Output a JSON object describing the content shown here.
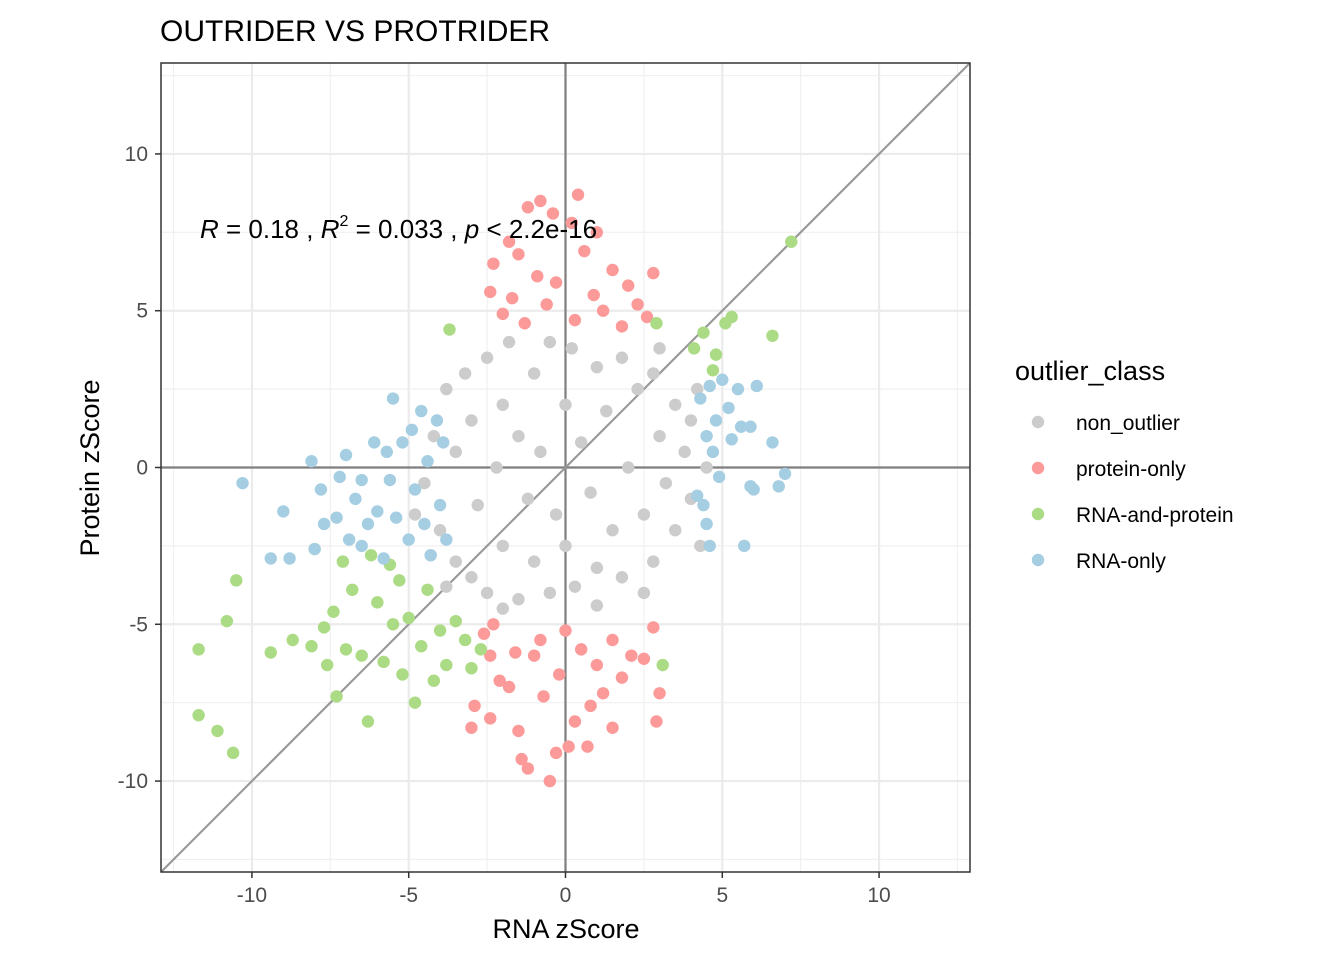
{
  "chart_data": {
    "type": "scatter",
    "title": "OUTRIDER VS PROTRIDER",
    "xlabel": "RNA zScore",
    "ylabel": "Protein zScore",
    "xlim": [
      -12.9,
      12.9
    ],
    "ylim": [
      -12.9,
      12.9
    ],
    "x_ticks": [
      -10,
      -5,
      0,
      5,
      10
    ],
    "y_ticks": [
      -10,
      -5,
      0,
      5,
      10
    ],
    "x_tick_labels": [
      "-10",
      "-5",
      "0",
      "5",
      "10"
    ],
    "y_tick_labels": [
      "-10",
      "-5",
      "0",
      "5",
      "10"
    ],
    "grid": true,
    "reference_lines": [
      "x = 0",
      "y = 0",
      "y = x"
    ],
    "annotation": {
      "r_symbol": "R",
      "r_text": " = 0.18 , ",
      "r2_symbol": "R",
      "r2_sup": "2",
      "r2_text": " = 0.033 , ",
      "p_symbol": "p",
      "p_text": " < 2.2e-16"
    },
    "legend": {
      "title": "outlier_class",
      "position": "right",
      "entries": [
        {
          "label": "non_outlier",
          "color": "#cccccc"
        },
        {
          "label": "protein-only",
          "color": "#fb9a99"
        },
        {
          "label": "RNA-and-protein",
          "color": "#abdb84"
        },
        {
          "label": "RNA-only",
          "color": "#a6cee3"
        }
      ]
    },
    "series": [
      {
        "name": "non_outlier",
        "color": "#cccccc",
        "points": [
          [
            -4.5,
            -0.5
          ],
          [
            -4.2,
            1.0
          ],
          [
            -4.0,
            -2.0
          ],
          [
            -3.8,
            2.5
          ],
          [
            -3.5,
            -3.0
          ],
          [
            -3.5,
            0.5
          ],
          [
            -3.2,
            3.0
          ],
          [
            -3.0,
            -3.5
          ],
          [
            -3.0,
            1.5
          ],
          [
            -2.8,
            -1.2
          ],
          [
            -2.5,
            3.5
          ],
          [
            -2.5,
            -4.0
          ],
          [
            -2.2,
            0.0
          ],
          [
            -2.0,
            2.0
          ],
          [
            -2.0,
            -2.5
          ],
          [
            -1.8,
            4.0
          ],
          [
            -1.5,
            -4.2
          ],
          [
            -1.5,
            1.0
          ],
          [
            -1.2,
            -1.0
          ],
          [
            -1.0,
            3.0
          ],
          [
            -1.0,
            -3.0
          ],
          [
            -0.8,
            0.5
          ],
          [
            -0.5,
            4.0
          ],
          [
            -0.5,
            -4.0
          ],
          [
            -0.3,
            -1.5
          ],
          [
            0.0,
            2.0
          ],
          [
            0.0,
            -2.5
          ],
          [
            0.2,
            3.8
          ],
          [
            0.3,
            -3.8
          ],
          [
            0.5,
            0.8
          ],
          [
            0.8,
            -0.8
          ],
          [
            1.0,
            3.2
          ],
          [
            1.0,
            -3.2
          ],
          [
            1.3,
            1.8
          ],
          [
            1.5,
            -2.0
          ],
          [
            1.8,
            3.5
          ],
          [
            1.8,
            -3.5
          ],
          [
            2.0,
            0.0
          ],
          [
            2.3,
            2.5
          ],
          [
            2.5,
            -1.5
          ],
          [
            2.8,
            3.0
          ],
          [
            2.8,
            -3.0
          ],
          [
            3.0,
            1.0
          ],
          [
            3.2,
            -0.5
          ],
          [
            3.5,
            2.0
          ],
          [
            3.5,
            -2.0
          ],
          [
            3.8,
            0.5
          ],
          [
            4.0,
            1.5
          ],
          [
            4.0,
            -1.0
          ],
          [
            4.2,
            2.5
          ],
          [
            4.5,
            0.0
          ],
          [
            -4.8,
            -1.5
          ],
          [
            -4.3,
            -2.8
          ],
          [
            4.3,
            -2.5
          ],
          [
            3.0,
            3.8
          ],
          [
            -3.8,
            -3.8
          ],
          [
            -2.0,
            -4.5
          ],
          [
            1.0,
            -4.4
          ],
          [
            2.5,
            -4.0
          ]
        ]
      },
      {
        "name": "protein-only",
        "color": "#fb9a99",
        "points": [
          [
            -1.2,
            8.3
          ],
          [
            -0.8,
            8.5
          ],
          [
            0.4,
            8.7
          ],
          [
            -0.4,
            8.1
          ],
          [
            0.2,
            7.8
          ],
          [
            -1.8,
            7.2
          ],
          [
            1.0,
            7.5
          ],
          [
            -2.3,
            6.5
          ],
          [
            2.8,
            6.2
          ],
          [
            -1.5,
            6.8
          ],
          [
            0.6,
            6.9
          ],
          [
            -2.4,
            5.6
          ],
          [
            1.5,
            6.3
          ],
          [
            -0.9,
            6.1
          ],
          [
            2.0,
            5.8
          ],
          [
            -0.3,
            5.9
          ],
          [
            0.9,
            5.5
          ],
          [
            -1.7,
            5.4
          ],
          [
            2.3,
            5.2
          ],
          [
            -2.0,
            4.9
          ],
          [
            1.2,
            5.0
          ],
          [
            -0.6,
            5.2
          ],
          [
            0.3,
            4.7
          ],
          [
            -1.3,
            4.6
          ],
          [
            2.6,
            4.8
          ],
          [
            1.8,
            4.5
          ],
          [
            -2.3,
            -5.0
          ],
          [
            -2.6,
            -5.3
          ],
          [
            -2.4,
            -6.0
          ],
          [
            -2.1,
            -6.8
          ],
          [
            -2.9,
            -7.6
          ],
          [
            -3.0,
            -8.3
          ],
          [
            -2.4,
            -8.0
          ],
          [
            -1.8,
            -7.0
          ],
          [
            -1.5,
            -8.4
          ],
          [
            -1.4,
            -9.3
          ],
          [
            -1.2,
            -9.6
          ],
          [
            -0.5,
            -10.0
          ],
          [
            -0.3,
            -9.1
          ],
          [
            0.1,
            -8.9
          ],
          [
            0.3,
            -8.1
          ],
          [
            0.8,
            -7.6
          ],
          [
            1.2,
            -7.2
          ],
          [
            1.5,
            -8.3
          ],
          [
            1.8,
            -6.7
          ],
          [
            2.1,
            -6.0
          ],
          [
            2.5,
            -6.1
          ],
          [
            2.8,
            -5.1
          ],
          [
            3.0,
            -7.2
          ],
          [
            2.9,
            -8.1
          ],
          [
            -0.8,
            -5.5
          ],
          [
            0.5,
            -5.8
          ],
          [
            -0.2,
            -6.6
          ],
          [
            1.0,
            -6.3
          ],
          [
            -1.0,
            -6.0
          ],
          [
            0.0,
            -5.2
          ],
          [
            1.5,
            -5.5
          ],
          [
            -1.6,
            -5.9
          ],
          [
            -0.7,
            -7.3
          ],
          [
            0.7,
            -8.9
          ]
        ]
      },
      {
        "name": "RNA-and-protein",
        "color": "#abdb84",
        "points": [
          [
            -11.7,
            -5.8
          ],
          [
            -11.7,
            -7.9
          ],
          [
            -11.1,
            -8.4
          ],
          [
            -10.6,
            -9.1
          ],
          [
            -10.5,
            -3.6
          ],
          [
            -10.8,
            -4.9
          ],
          [
            -9.4,
            -5.9
          ],
          [
            -8.7,
            -5.5
          ],
          [
            -8.1,
            -5.7
          ],
          [
            -7.7,
            -5.1
          ],
          [
            -7.6,
            -6.3
          ],
          [
            -7.4,
            -4.6
          ],
          [
            -7.3,
            -7.3
          ],
          [
            -7.0,
            -5.8
          ],
          [
            -6.8,
            -3.9
          ],
          [
            -6.5,
            -6.0
          ],
          [
            -6.3,
            -8.1
          ],
          [
            -6.0,
            -4.3
          ],
          [
            -5.8,
            -6.2
          ],
          [
            -5.5,
            -5.0
          ],
          [
            -5.3,
            -3.6
          ],
          [
            -5.2,
            -6.6
          ],
          [
            -5.0,
            -4.8
          ],
          [
            -4.8,
            -7.5
          ],
          [
            -4.6,
            -5.7
          ],
          [
            -4.4,
            -3.9
          ],
          [
            -4.2,
            -6.8
          ],
          [
            -4.0,
            -5.2
          ],
          [
            -3.8,
            -6.3
          ],
          [
            -3.5,
            -4.9
          ],
          [
            -3.2,
            -5.5
          ],
          [
            -3.0,
            -6.4
          ],
          [
            -2.7,
            -5.8
          ],
          [
            -3.7,
            4.4
          ],
          [
            4.1,
            3.8
          ],
          [
            4.4,
            4.3
          ],
          [
            5.1,
            4.6
          ],
          [
            5.3,
            4.8
          ],
          [
            6.6,
            4.2
          ],
          [
            7.2,
            7.2
          ],
          [
            3.1,
            -6.3
          ],
          [
            -8.0,
            -2.6
          ],
          [
            -7.1,
            -3.0
          ],
          [
            -6.2,
            -2.8
          ],
          [
            -5.6,
            -3.1
          ],
          [
            4.8,
            3.6
          ],
          [
            4.7,
            3.1
          ],
          [
            2.9,
            4.6
          ]
        ]
      },
      {
        "name": "RNA-only",
        "color": "#a6cee3",
        "points": [
          [
            -10.3,
            -0.5
          ],
          [
            -9.4,
            -2.9
          ],
          [
            -9.0,
            -1.4
          ],
          [
            -8.8,
            -2.9
          ],
          [
            -8.0,
            -2.6
          ],
          [
            -8.1,
            0.2
          ],
          [
            -7.8,
            -0.7
          ],
          [
            -7.7,
            -1.8
          ],
          [
            -7.2,
            -0.3
          ],
          [
            -7.3,
            -1.6
          ],
          [
            -7.0,
            0.4
          ],
          [
            -6.9,
            -2.3
          ],
          [
            -6.7,
            -1.0
          ],
          [
            -6.5,
            -0.4
          ],
          [
            -6.3,
            -1.8
          ],
          [
            -6.5,
            -2.5
          ],
          [
            -6.1,
            0.8
          ],
          [
            -6.0,
            -1.4
          ],
          [
            -5.8,
            -2.9
          ],
          [
            -5.7,
            0.5
          ],
          [
            -5.6,
            -0.4
          ],
          [
            -5.5,
            2.2
          ],
          [
            -5.4,
            -1.6
          ],
          [
            -5.2,
            0.8
          ],
          [
            -5.0,
            -2.3
          ],
          [
            -4.9,
            1.2
          ],
          [
            -4.8,
            -0.7
          ],
          [
            -4.6,
            1.8
          ],
          [
            -4.5,
            -1.8
          ],
          [
            -4.4,
            0.2
          ],
          [
            -4.3,
            -2.8
          ],
          [
            -4.1,
            1.5
          ],
          [
            -4.0,
            -1.2
          ],
          [
            -3.8,
            -2.3
          ],
          [
            -3.9,
            0.8
          ],
          [
            4.3,
            2.2
          ],
          [
            4.5,
            1.0
          ],
          [
            4.6,
            2.6
          ],
          [
            4.7,
            0.5
          ],
          [
            4.8,
            1.5
          ],
          [
            4.9,
            -0.3
          ],
          [
            5.0,
            2.8
          ],
          [
            5.2,
            1.9
          ],
          [
            5.3,
            0.9
          ],
          [
            5.5,
            2.5
          ],
          [
            5.6,
            1.3
          ],
          [
            5.9,
            -0.6
          ],
          [
            5.7,
            -2.5
          ],
          [
            6.0,
            -0.7
          ],
          [
            5.9,
            1.3
          ],
          [
            6.1,
            2.6
          ],
          [
            6.6,
            0.8
          ],
          [
            6.8,
            -0.6
          ],
          [
            7.0,
            -0.2
          ],
          [
            4.6,
            -2.5
          ],
          [
            4.4,
            -1.2
          ],
          [
            4.5,
            -1.8
          ],
          [
            4.2,
            -0.9
          ]
        ]
      }
    ]
  }
}
